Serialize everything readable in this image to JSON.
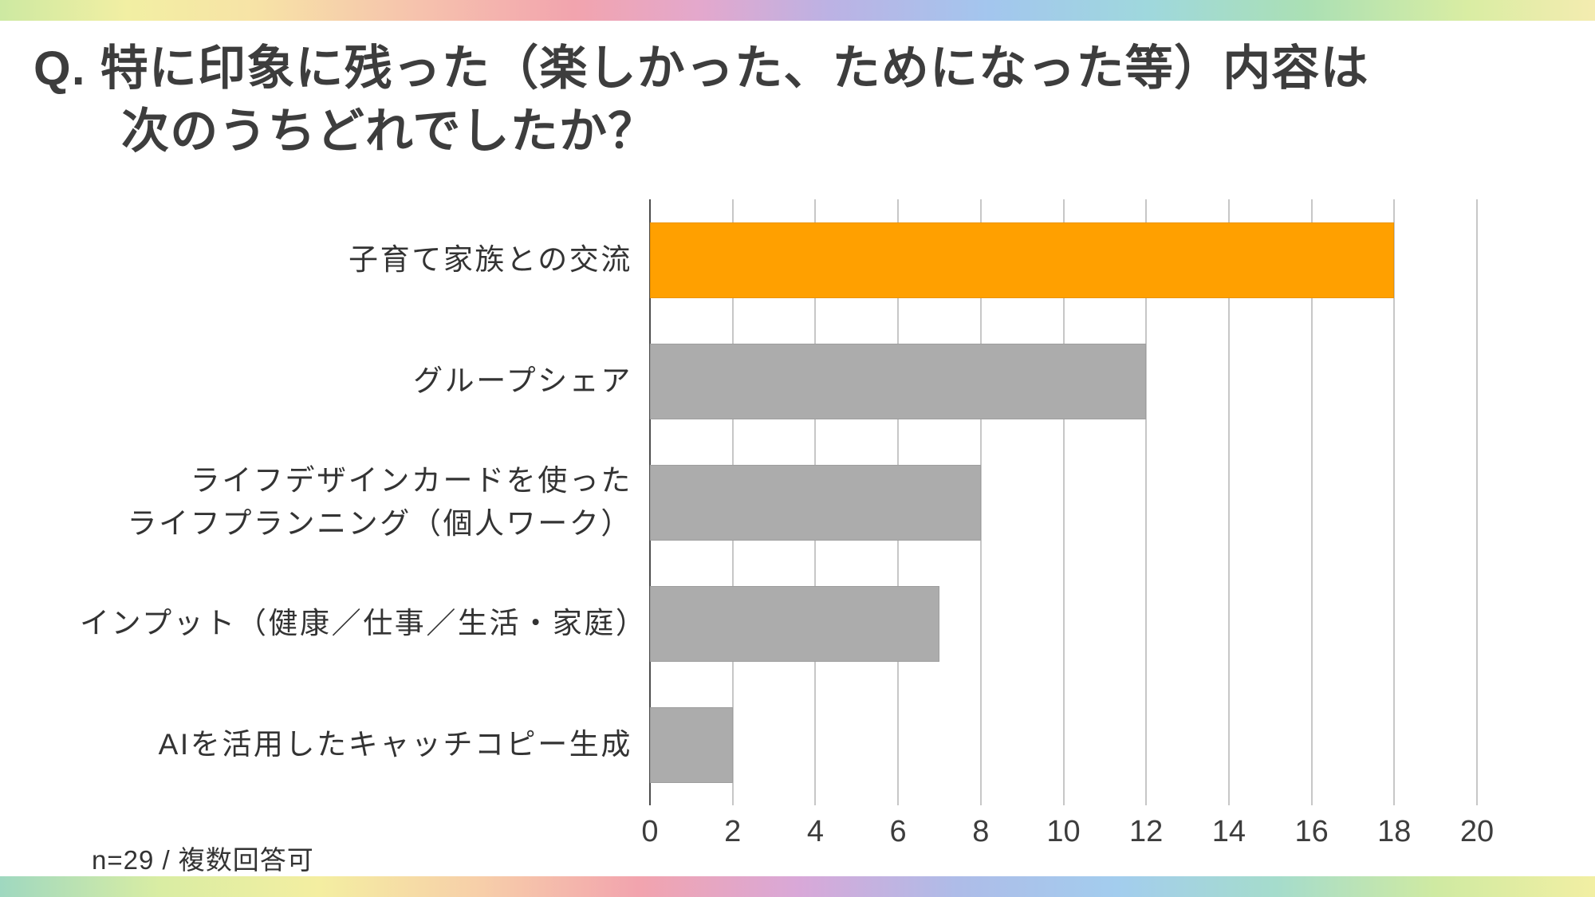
{
  "header": {
    "title_line1": "Q. 特に印象に残った（楽しかった、ためになった等）内容は",
    "title_line2": "次のうちどれでしたか？"
  },
  "footer": {
    "note": "n=29 / 複数回答可"
  },
  "chart_data": {
    "type": "bar",
    "orientation": "horizontal",
    "title": "",
    "xlabel": "",
    "ylabel": "",
    "categories": [
      "子育て家族との交流",
      "グループシェア",
      "ライフデザインカードを使った\nライフプランニング（個人ワーク）",
      "インプット（健康／仕事／生活・家庭）",
      "AIを活用したキャッチコピー生成"
    ],
    "values": [
      18,
      12,
      8,
      7,
      2
    ],
    "xlim": [
      0,
      20
    ],
    "x_ticks": [
      0,
      2,
      4,
      6,
      8,
      10,
      12,
      14,
      16,
      18,
      20
    ],
    "grid": true,
    "legend": false,
    "highlight_index": 0,
    "colors": {
      "highlight": "#FFA000",
      "default": "#ACACAC"
    },
    "note": "n=29 / 複数回答可"
  },
  "theme": {
    "accent_orange": "#FFA000",
    "bar_gray": "#ACACAC",
    "grid_color": "#C7C7C7",
    "axis_color": "#4D4D4D",
    "title_color": "#3D3D3D"
  }
}
